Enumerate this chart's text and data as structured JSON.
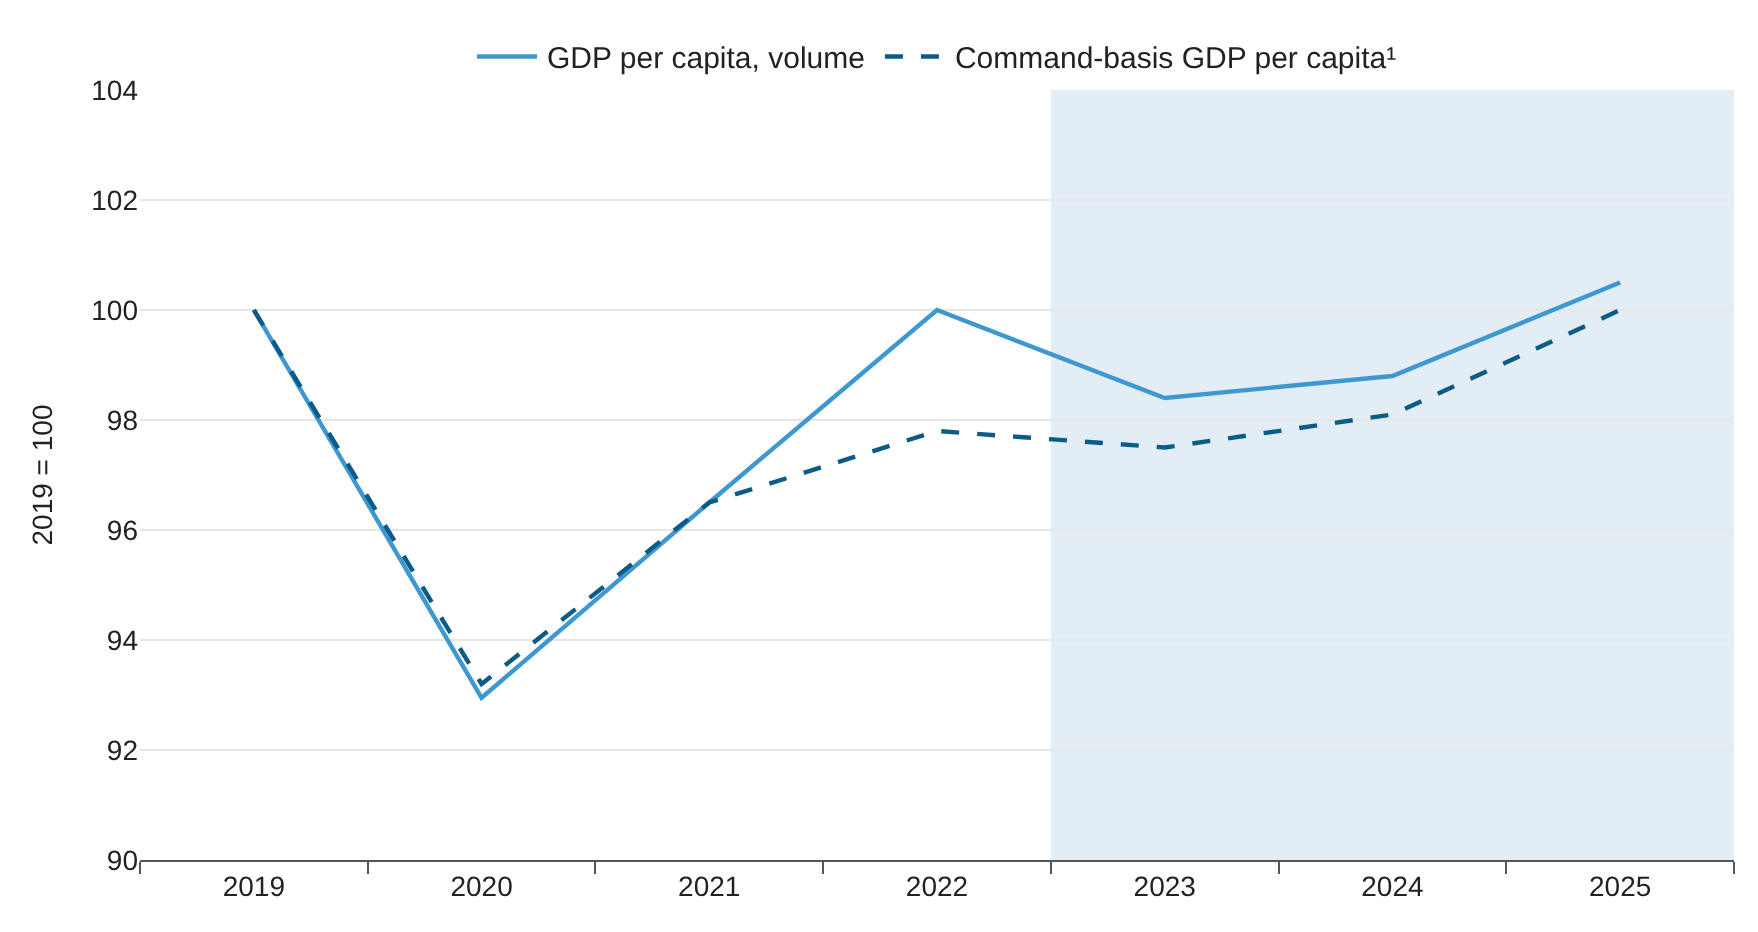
{
  "chart_data": {
    "type": "line",
    "ylabel": "2019 = 100",
    "x": [
      2019,
      2020,
      2021,
      2022,
      2023,
      2024,
      2025
    ],
    "series": [
      {
        "name": "GDP per capita, volume",
        "color": "#3d97d0",
        "values": [
          100,
          92.95,
          96.5,
          100,
          98.4,
          98.8,
          100.5
        ],
        "line_style": "solid"
      },
      {
        "name": "Command-basis GDP per capita¹",
        "color": "#0c5b87",
        "values": [
          100,
          93.2,
          96.5,
          97.8,
          97.5,
          98.1,
          100
        ],
        "line_style": "dashed"
      }
    ],
    "xlim": [
      2018.5,
      2025.5
    ],
    "xticks": [
      2019,
      2020,
      2021,
      2022,
      2023,
      2024,
      2025
    ],
    "ylim": [
      90,
      104
    ],
    "yticks": [
      90,
      92,
      94,
      96,
      98,
      100,
      102,
      104
    ],
    "bands": [
      {
        "axis": "x",
        "from": 2022.5,
        "to": 2025.5,
        "color": "#e3edf5"
      }
    ],
    "grid": "y",
    "legend": "top",
    "marker": "none"
  }
}
